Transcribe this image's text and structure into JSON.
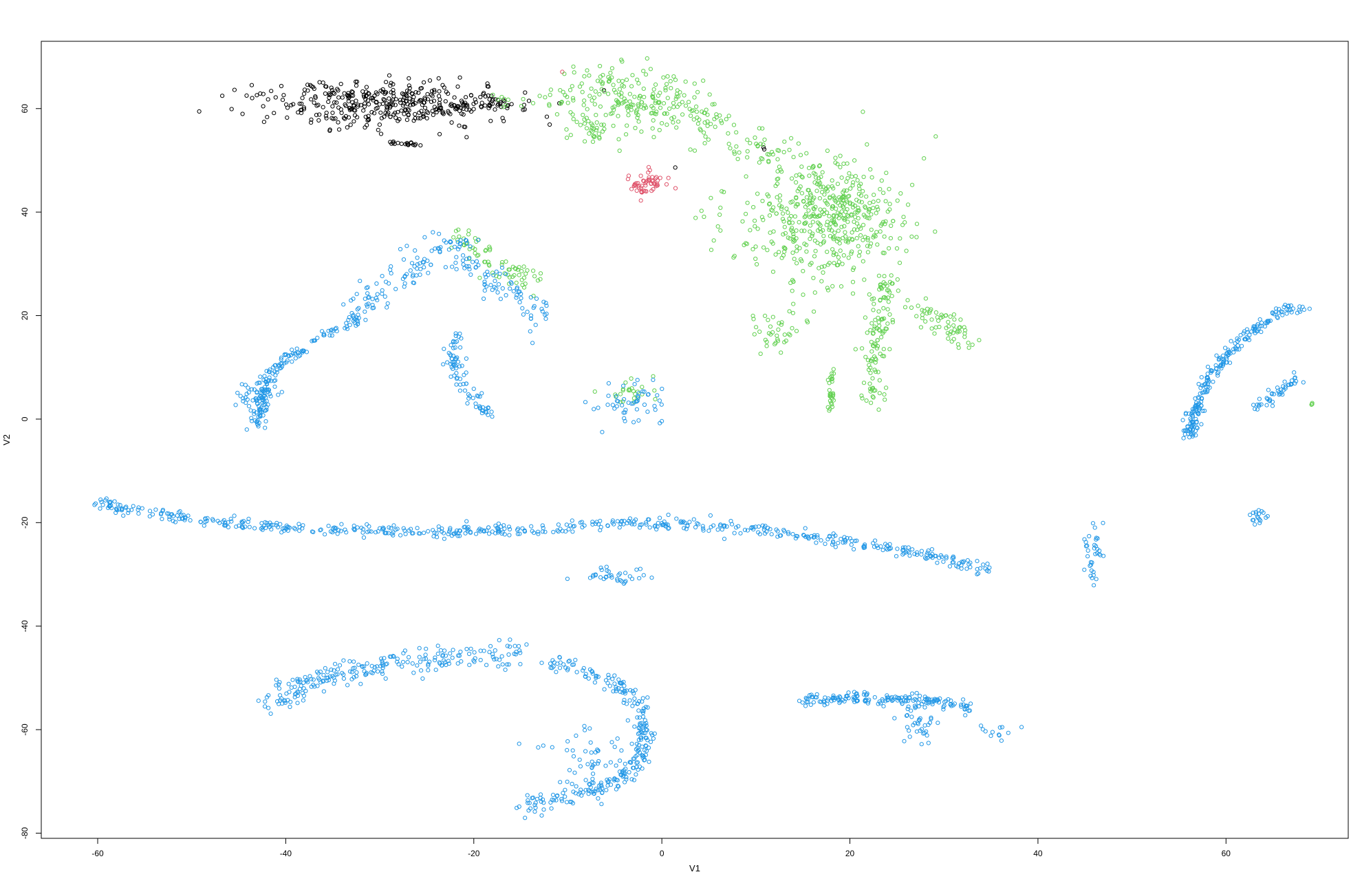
{
  "chart_data": {
    "type": "scatter",
    "title": "",
    "xlabel": "V1",
    "ylabel": "V2",
    "xlim": [
      -66,
      73
    ],
    "ylim": [
      -81,
      73
    ],
    "xticks": [
      -60,
      -40,
      -20,
      0,
      20,
      40,
      60
    ],
    "yticks": [
      -80,
      -60,
      -40,
      -20,
      0,
      20,
      40,
      60
    ],
    "xtick_labels": [
      "-60",
      "-40",
      "-20",
      "0",
      "20",
      "40",
      "60"
    ],
    "ytick_labels": [
      "-80",
      "-60",
      "-40",
      "-20",
      "0",
      "20",
      "40",
      "60"
    ],
    "grid": false,
    "legend": "none",
    "marker": "open-circle",
    "groups": [
      {
        "color": "#000000"
      },
      {
        "color": "#DF536B"
      },
      {
        "color": "#61D04F"
      },
      {
        "color": "#2297E6"
      }
    ],
    "clusters": [
      {
        "group": 0,
        "shape": "blob",
        "center": [
          -29,
          61
        ],
        "spread": [
          6.5,
          2.2
        ],
        "count": 380
      },
      {
        "group": 0,
        "shape": "curve",
        "path": [
          [
            -23,
            60.5
          ],
          [
            -17,
            61
          ]
        ],
        "count": 30,
        "jitter": 0.5
      },
      {
        "group": 0,
        "shape": "curve",
        "path": [
          [
            -29.5,
            53.5
          ],
          [
            -25.5,
            53
          ]
        ],
        "count": 18,
        "jitter": 0.2
      },
      {
        "group": 0,
        "shape": "blob",
        "center": [
          10.5,
          52.5
        ],
        "spread": [
          0.3,
          0.2
        ],
        "count": 2
      },
      {
        "group": 0,
        "shape": "blob",
        "center": [
          1.5,
          48.5
        ],
        "spread": [
          0.2,
          0.2
        ],
        "count": 1
      },
      {
        "group": 1,
        "shape": "blob",
        "center": [
          -1.7,
          45.5
        ],
        "spread": [
          1.0,
          1.2
        ],
        "count": 55
      },
      {
        "group": 1,
        "shape": "blob",
        "center": [
          -10.5,
          67
        ],
        "spread": [
          0.1,
          0.1
        ],
        "count": 1
      },
      {
        "group": 2,
        "shape": "blob",
        "center": [
          -3,
          61
        ],
        "spread": [
          4,
          3
        ],
        "count": 130
      },
      {
        "group": 2,
        "shape": "curve",
        "path": [
          [
            -8,
            66
          ],
          [
            -2,
            62
          ],
          [
            4,
            58
          ],
          [
            10,
            53
          ],
          [
            15,
            48
          ],
          [
            20,
            43
          ],
          [
            24,
            37
          ]
        ],
        "count": 220,
        "jitter": 2.2
      },
      {
        "group": 2,
        "shape": "blob",
        "center": [
          17,
          38
        ],
        "spread": [
          4.5,
          6
        ],
        "count": 420
      },
      {
        "group": 2,
        "shape": "curve",
        "path": [
          [
            -12,
            63
          ],
          [
            -10,
            60
          ],
          [
            -7,
            55
          ]
        ],
        "count": 40,
        "jitter": 1.2
      },
      {
        "group": 2,
        "shape": "curve",
        "path": [
          [
            -18.5,
            62
          ],
          [
            -14,
            61
          ]
        ],
        "count": 10,
        "jitter": 0.7
      },
      {
        "group": 2,
        "shape": "curve",
        "path": [
          [
            -22,
            35
          ],
          [
            -19,
            31
          ],
          [
            -16,
            29
          ],
          [
            -13,
            26
          ]
        ],
        "count": 70,
        "jitter": 1.4
      },
      {
        "group": 2,
        "shape": "blob",
        "center": [
          12.5,
          16.5
        ],
        "spread": [
          1.2,
          1.8
        ],
        "count": 35
      },
      {
        "group": 2,
        "shape": "curve",
        "path": [
          [
            26,
            22
          ],
          [
            30,
            19
          ],
          [
            33,
            15
          ]
        ],
        "count": 60,
        "jitter": 1.3
      },
      {
        "group": 2,
        "shape": "curve",
        "path": [
          [
            24,
            27
          ],
          [
            23,
            18
          ],
          [
            22.5,
            8
          ],
          [
            22.5,
            3
          ]
        ],
        "count": 120,
        "jitter": 1.2
      },
      {
        "group": 2,
        "shape": "curve",
        "path": [
          [
            18,
            10
          ],
          [
            18,
            4
          ],
          [
            18,
            1
          ]
        ],
        "count": 30,
        "jitter": 0.3
      },
      {
        "group": 2,
        "shape": "blob",
        "center": [
          -3,
          5
        ],
        "spread": [
          1.6,
          1.2
        ],
        "count": 25
      },
      {
        "group": 2,
        "shape": "blob",
        "center": [
          69,
          3
        ],
        "spread": [
          0.2,
          0.2
        ],
        "count": 3
      },
      {
        "group": 3,
        "shape": "curve",
        "path": [
          [
            -43,
            -1
          ],
          [
            -42,
            7
          ],
          [
            -40,
            12
          ],
          [
            -36,
            16
          ],
          [
            -32,
            19.5
          ]
        ],
        "count": 150,
        "jitter": 0.6
      },
      {
        "group": 3,
        "shape": "blob",
        "center": [
          -43.5,
          4
        ],
        "spread": [
          1.2,
          2.2
        ],
        "count": 50
      },
      {
        "group": 3,
        "shape": "curve",
        "path": [
          [
            -33,
            21
          ],
          [
            -30,
            25
          ],
          [
            -27,
            29
          ],
          [
            -22,
            34
          ]
        ],
        "count": 90,
        "jitter": 1.6
      },
      {
        "group": 3,
        "shape": "curve",
        "path": [
          [
            -22,
            34
          ],
          [
            -20,
            29
          ],
          [
            -16,
            25
          ],
          [
            -12.5,
            19
          ]
        ],
        "count": 90,
        "jitter": 1.5
      },
      {
        "group": 3,
        "shape": "curve",
        "path": [
          [
            -22,
            16
          ],
          [
            -22,
            9
          ],
          [
            -20,
            4
          ],
          [
            -18,
            1
          ]
        ],
        "count": 80,
        "jitter": 0.8
      },
      {
        "group": 3,
        "shape": "blob",
        "center": [
          -3.5,
          3
        ],
        "spread": [
          1.8,
          1.8
        ],
        "count": 50
      },
      {
        "group": 3,
        "shape": "curve",
        "path": [
          [
            -61,
            -16
          ],
          [
            -50,
            -19.5
          ],
          [
            -40,
            -21
          ],
          [
            -25,
            -21.8
          ],
          [
            -10,
            -21
          ],
          [
            -3,
            -20
          ],
          [
            5,
            -20.5
          ],
          [
            15,
            -22.5
          ],
          [
            25,
            -25
          ],
          [
            32,
            -28
          ],
          [
            35,
            -29.5
          ]
        ],
        "count": 560,
        "jitter": 0.6
      },
      {
        "group": 3,
        "shape": "blob",
        "center": [
          -5,
          -30.5
        ],
        "spread": [
          1.8,
          0.8
        ],
        "count": 35
      },
      {
        "group": 3,
        "shape": "blob",
        "center": [
          45.8,
          -26
        ],
        "spread": [
          0.6,
          3
        ],
        "count": 35
      },
      {
        "group": 3,
        "shape": "curve",
        "path": [
          [
            -42,
            -55
          ],
          [
            -36,
            -50
          ],
          [
            -28,
            -47
          ],
          [
            -18,
            -46
          ],
          [
            -15,
            -45
          ]
        ],
        "count": 230,
        "jitter": 1.3
      },
      {
        "group": 3,
        "shape": "curve",
        "path": [
          [
            -12,
            -47
          ],
          [
            -5,
            -51
          ],
          [
            -2,
            -56
          ],
          [
            -2,
            -65
          ],
          [
            -5,
            -70
          ],
          [
            -10,
            -73
          ],
          [
            -15,
            -75
          ]
        ],
        "count": 270,
        "jitter": 0.9
      },
      {
        "group": 3,
        "shape": "blob",
        "center": [
          -8,
          -66
        ],
        "spread": [
          2.5,
          3.5
        ],
        "count": 50
      },
      {
        "group": 3,
        "shape": "curve",
        "path": [
          [
            15,
            -54
          ],
          [
            22,
            -54
          ],
          [
            29,
            -54.5
          ],
          [
            33,
            -56
          ]
        ],
        "count": 170,
        "jitter": 0.6
      },
      {
        "group": 3,
        "shape": "blob",
        "center": [
          27.5,
          -59
        ],
        "spread": [
          1.0,
          1.8
        ],
        "count": 35
      },
      {
        "group": 3,
        "shape": "blob",
        "center": [
          36,
          -60.5
        ],
        "spread": [
          0.9,
          0.8
        ],
        "count": 12
      },
      {
        "group": 3,
        "shape": "curve",
        "path": [
          [
            56,
            -3
          ],
          [
            58,
            8
          ],
          [
            62,
            16
          ],
          [
            66,
            21
          ],
          [
            68.5,
            21.5
          ]
        ],
        "count": 200,
        "jitter": 0.6
      },
      {
        "group": 3,
        "shape": "blob",
        "center": [
          56.5,
          -1
        ],
        "spread": [
          0.6,
          1.8
        ],
        "count": 30
      },
      {
        "group": 3,
        "shape": "curve",
        "path": [
          [
            63,
            2
          ],
          [
            66,
            5.5
          ],
          [
            67.5,
            8
          ]
        ],
        "count": 45,
        "jitter": 0.6
      },
      {
        "group": 3,
        "shape": "blob",
        "center": [
          63.5,
          -19
        ],
        "spread": [
          0.4,
          0.8
        ],
        "count": 18
      }
    ]
  }
}
